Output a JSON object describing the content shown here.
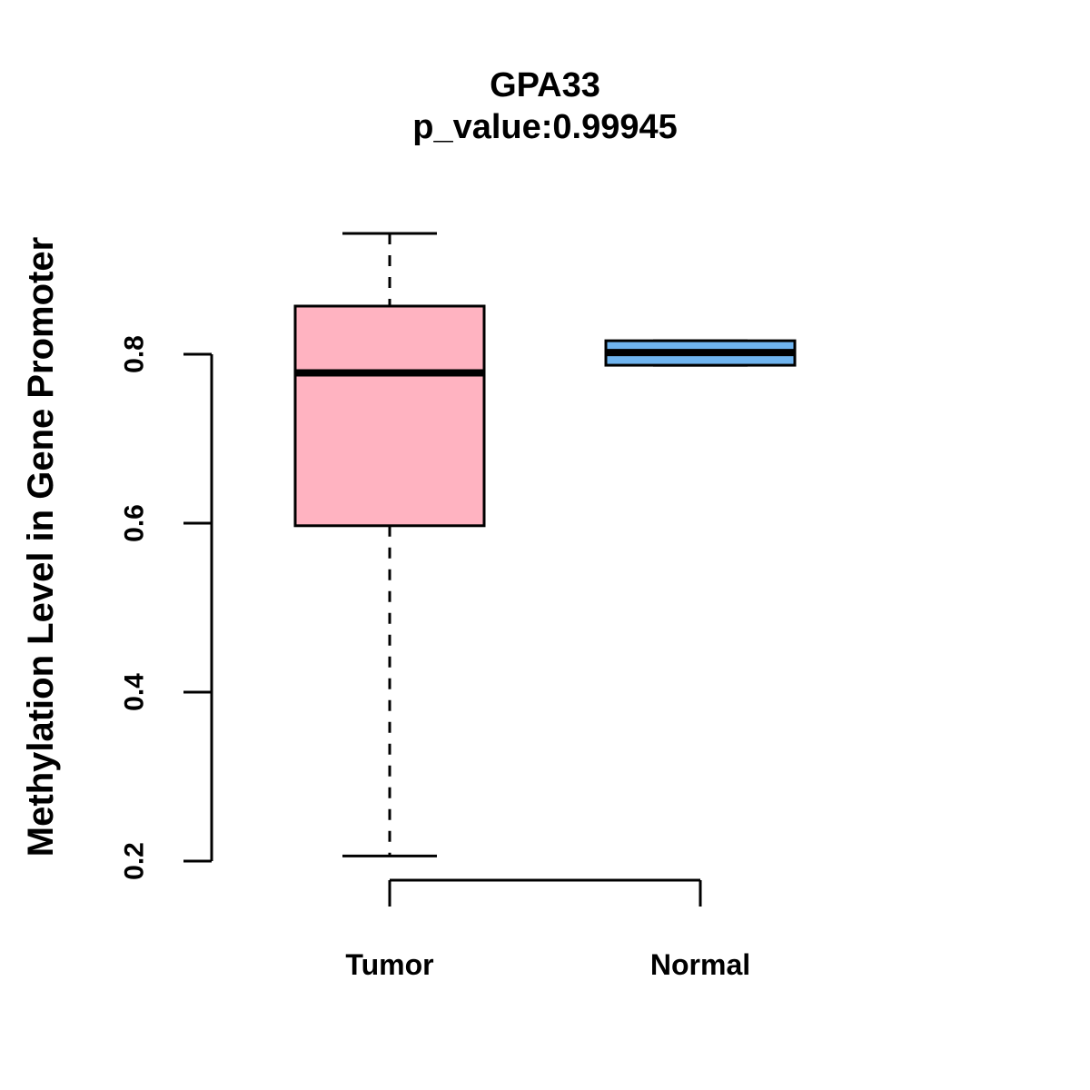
{
  "title": "GPA33",
  "subtitle": "p_value:0.99945",
  "colors": {
    "tumor_fill": "#FFB3C1",
    "normal_fill": "#6FB4EF",
    "stroke": "#000000",
    "background": "#FFFFFF"
  },
  "chart_data": {
    "type": "boxplot",
    "title": "GPA33",
    "subtitle": "p_value:0.99945",
    "xlabel": "",
    "ylabel": "Methylation Level in Gene Promoter",
    "ylim": [
      0.17,
      0.96
    ],
    "yticks": [
      0.2,
      0.4,
      0.6,
      0.8
    ],
    "grid": false,
    "legend": "none",
    "groups": [
      {
        "label": "Tumor",
        "fill": "#FFB3C1",
        "whisker_low": 0.206,
        "q1": 0.597,
        "median": 0.778,
        "q3": 0.857,
        "whisker_high": 0.943
      },
      {
        "label": "Normal",
        "fill": "#6FB4EF",
        "whisker_low": 0.787,
        "q1": 0.787,
        "median": 0.802,
        "q3": 0.816,
        "whisker_high": 0.816
      }
    ]
  }
}
